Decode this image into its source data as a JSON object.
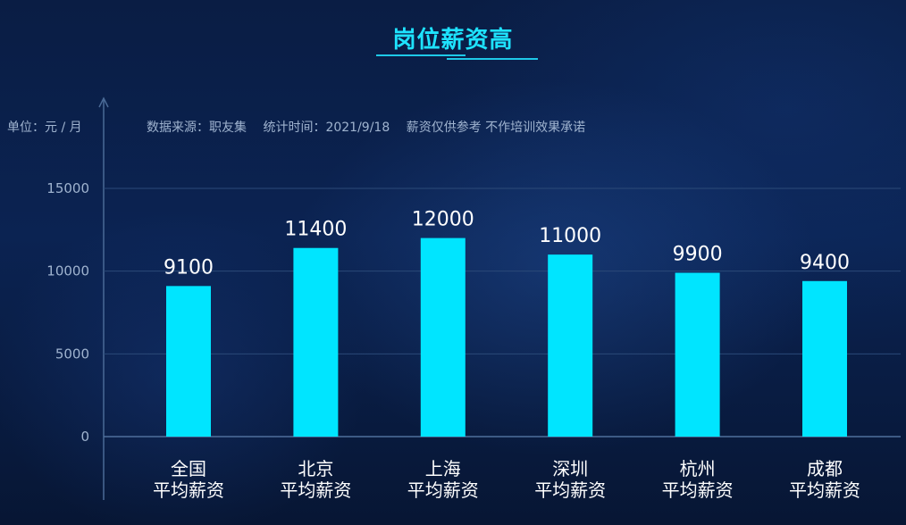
{
  "title": "岗位薪资高",
  "unit_label": "单位：元 / 月",
  "meta": {
    "source": "数据来源：职友集",
    "time": "统计时间：2021/9/18",
    "note": "薪资仅供参考 不作培训效果承诺"
  },
  "chart_data": {
    "type": "bar",
    "categories": [
      [
        "全国",
        "平均薪资"
      ],
      [
        "北京",
        "平均薪资"
      ],
      [
        "上海",
        "平均薪资"
      ],
      [
        "深圳",
        "平均薪资"
      ],
      [
        "杭州",
        "平均薪资"
      ],
      [
        "成都",
        "平均薪资"
      ]
    ],
    "values": [
      9100,
      11400,
      12000,
      11000,
      9900,
      9400
    ],
    "title": "岗位薪资高",
    "ylabel": "单位：元 / 月",
    "yticks": [
      0,
      5000,
      10000,
      15000
    ],
    "ylim": [
      0,
      15000
    ],
    "grid": true,
    "bar_color": "#00e5ff"
  }
}
